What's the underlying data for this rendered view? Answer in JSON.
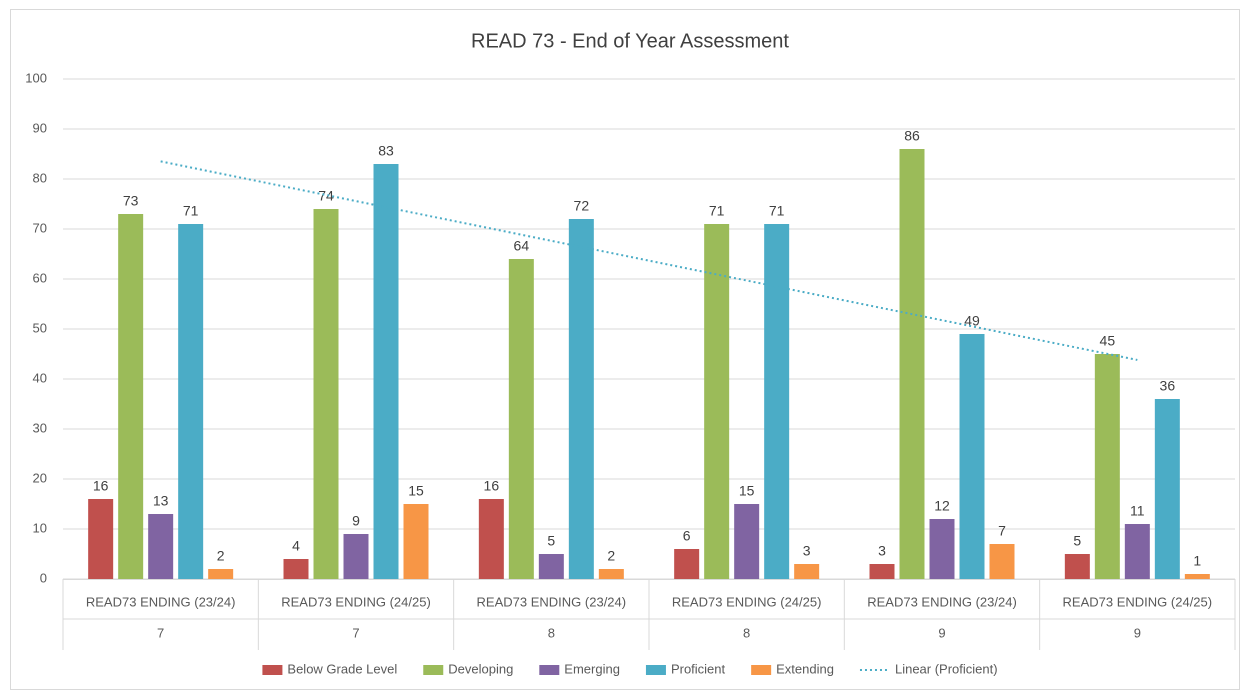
{
  "chart_data": {
    "type": "bar",
    "title": "READ 73 - End of Year Assessment",
    "categories": [
      "READ73 ENDING (23/24)",
      "READ73 ENDING (24/25)",
      "READ73 ENDING (23/24)",
      "READ73 ENDING (24/25)",
      "READ73 ENDING (23/24)",
      "READ73 ENDING (24/25)"
    ],
    "groups": [
      "7",
      "7",
      "8",
      "8",
      "9",
      "9"
    ],
    "series": [
      {
        "name": "Below Grade Level",
        "color": "#c0504d",
        "values": [
          16,
          4,
          16,
          6,
          3,
          5
        ]
      },
      {
        "name": "Developing",
        "color": "#9bbb59",
        "values": [
          73,
          74,
          64,
          71,
          86,
          45
        ]
      },
      {
        "name": "Emerging",
        "color": "#8064a2",
        "values": [
          13,
          9,
          5,
          15,
          12,
          11
        ]
      },
      {
        "name": "Proficient",
        "color": "#4bacc6",
        "values": [
          71,
          83,
          72,
          71,
          49,
          36
        ]
      },
      {
        "name": "Extending",
        "color": "#f79646",
        "values": [
          2,
          15,
          2,
          3,
          7,
          1
        ]
      }
    ],
    "trendline": {
      "name": "Linear (Proficient)",
      "of": "Proficient",
      "kind": "linear",
      "color": "#4bacc6"
    },
    "ylim": [
      0,
      100
    ],
    "yticks": [
      0,
      10,
      20,
      30,
      40,
      50,
      60,
      70,
      80,
      90,
      100
    ],
    "grid": true,
    "legend": "bottom"
  }
}
